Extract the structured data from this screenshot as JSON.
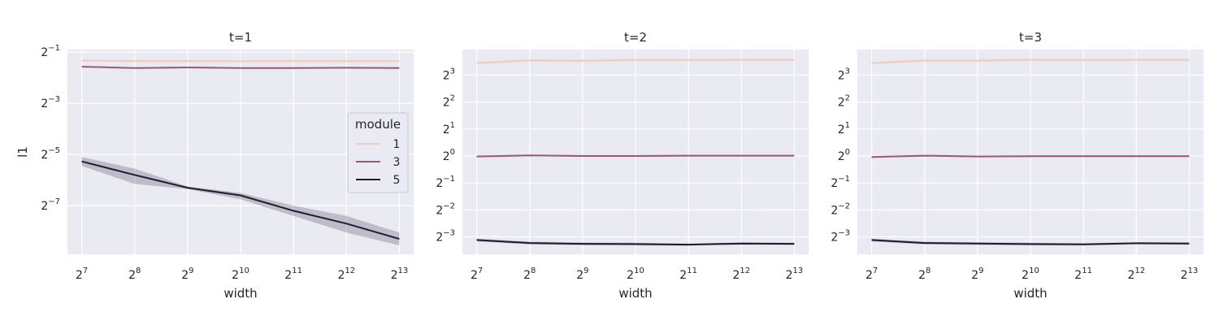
{
  "chart_data": [
    {
      "type": "line",
      "title": "t=1",
      "xlabel": "width",
      "ylabel": "l1",
      "x_scale": "log2",
      "y_scale": "log2",
      "x": [
        7,
        8,
        9,
        10,
        11,
        12,
        13
      ],
      "x_tick_labels": [
        "2^7",
        "2^8",
        "2^9",
        "2^10",
        "2^11",
        "2^12",
        "2^13"
      ],
      "ylim": [
        -8.9,
        -0.9
      ],
      "y_ticks": [
        -7,
        -5,
        -3,
        -1
      ],
      "y_tick_labels": [
        "2^−7",
        "2^−5",
        "2^−3",
        "2^−1"
      ],
      "grid": true,
      "legend": {
        "title": "module",
        "placement": "right",
        "entries": [
          "1",
          "3",
          "5"
        ]
      },
      "series": [
        {
          "name": "1",
          "color": "#f1cbc0",
          "values": [
            -1.33,
            -1.35,
            -1.35,
            -1.35,
            -1.35,
            -1.35,
            -1.35
          ],
          "ci_low": [
            -1.38,
            -1.4,
            -1.4,
            -1.4,
            -1.4,
            -1.4,
            -1.4
          ],
          "ci_high": [
            -1.29,
            -1.31,
            -1.31,
            -1.31,
            -1.31,
            -1.31,
            -1.31
          ]
        },
        {
          "name": "3",
          "color": "#9c567a",
          "values": [
            -1.57,
            -1.62,
            -1.6,
            -1.62,
            -1.62,
            -1.61,
            -1.62
          ],
          "ci_low": [
            -1.6,
            -1.65,
            -1.63,
            -1.65,
            -1.65,
            -1.64,
            -1.65
          ],
          "ci_high": [
            -1.54,
            -1.59,
            -1.57,
            -1.59,
            -1.59,
            -1.58,
            -1.59
          ]
        },
        {
          "name": "5",
          "color": "#221a30",
          "values": [
            -5.27,
            -5.8,
            -6.3,
            -6.6,
            -7.2,
            -7.7,
            -8.3
          ],
          "ci_low": [
            -5.45,
            -6.15,
            -6.35,
            -6.75,
            -7.4,
            -8.05,
            -8.55
          ],
          "ci_high": [
            -5.1,
            -5.55,
            -6.25,
            -6.5,
            -7.0,
            -7.4,
            -8.05
          ]
        }
      ]
    },
    {
      "type": "line",
      "title": "t=2",
      "xlabel": "width",
      "ylabel": "",
      "x_scale": "log2",
      "y_scale": "log2",
      "x": [
        7,
        8,
        9,
        10,
        11,
        12,
        13
      ],
      "x_tick_labels": [
        "2^7",
        "2^8",
        "2^9",
        "2^10",
        "2^11",
        "2^12",
        "2^13"
      ],
      "ylim": [
        -3.65,
        3.95
      ],
      "y_ticks": [
        -3,
        -2,
        -1,
        0,
        1,
        2,
        3
      ],
      "y_tick_labels": [
        "2^−3",
        "2^−2",
        "2^−1",
        "2^0",
        "2^1",
        "2^2",
        "2^3"
      ],
      "grid": true,
      "series": [
        {
          "name": "1",
          "color": "#f1cbc0",
          "values": [
            3.45,
            3.55,
            3.53,
            3.57,
            3.56,
            3.57,
            3.57
          ],
          "ci_low": [
            3.4,
            3.5,
            3.48,
            3.52,
            3.51,
            3.52,
            3.52
          ],
          "ci_high": [
            3.5,
            3.6,
            3.58,
            3.62,
            3.61,
            3.62,
            3.62
          ]
        },
        {
          "name": "3",
          "color": "#9c567a",
          "values": [
            -0.02,
            0.02,
            0.0,
            0.0,
            0.01,
            0.01,
            0.01
          ],
          "ci_low": [
            -0.05,
            -0.01,
            -0.03,
            -0.03,
            -0.02,
            -0.02,
            -0.02
          ],
          "ci_high": [
            0.01,
            0.05,
            0.03,
            0.03,
            0.04,
            0.04,
            0.04
          ]
        },
        {
          "name": "5",
          "color": "#221a30",
          "values": [
            -3.12,
            -3.23,
            -3.26,
            -3.27,
            -3.29,
            -3.25,
            -3.26
          ],
          "ci_low": [
            -3.17,
            -3.28,
            -3.31,
            -3.32,
            -3.33,
            -3.29,
            -3.3
          ],
          "ci_high": [
            -3.07,
            -3.18,
            -3.21,
            -3.22,
            -3.25,
            -3.21,
            -3.22
          ]
        }
      ]
    },
    {
      "type": "line",
      "title": "t=3",
      "xlabel": "width",
      "ylabel": "",
      "x_scale": "log2",
      "y_scale": "log2",
      "x": [
        7,
        8,
        9,
        10,
        11,
        12,
        13
      ],
      "x_tick_labels": [
        "2^7",
        "2^8",
        "2^9",
        "2^10",
        "2^11",
        "2^12",
        "2^13"
      ],
      "ylim": [
        -3.65,
        3.95
      ],
      "y_ticks": [
        -3,
        -2,
        -1,
        0,
        1,
        2,
        3
      ],
      "y_tick_labels": [
        "2^−3",
        "2^−2",
        "2^−1",
        "2^0",
        "2^1",
        "2^2",
        "2^3"
      ],
      "grid": true,
      "series": [
        {
          "name": "1",
          "color": "#f1cbc0",
          "values": [
            3.45,
            3.54,
            3.54,
            3.57,
            3.56,
            3.57,
            3.57
          ],
          "ci_low": [
            3.4,
            3.49,
            3.49,
            3.52,
            3.51,
            3.52,
            3.52
          ],
          "ci_high": [
            3.5,
            3.59,
            3.59,
            3.62,
            3.61,
            3.62,
            3.62
          ]
        },
        {
          "name": "3",
          "color": "#9c567a",
          "values": [
            -0.04,
            0.01,
            -0.02,
            -0.01,
            -0.01,
            -0.01,
            -0.01
          ],
          "ci_low": [
            -0.07,
            -0.02,
            -0.05,
            -0.04,
            -0.04,
            -0.04,
            -0.04
          ],
          "ci_high": [
            -0.01,
            0.04,
            0.01,
            0.02,
            0.02,
            0.02,
            0.02
          ]
        },
        {
          "name": "5",
          "color": "#221a30",
          "values": [
            -3.12,
            -3.23,
            -3.25,
            -3.27,
            -3.28,
            -3.24,
            -3.25
          ],
          "ci_low": [
            -3.17,
            -3.28,
            -3.3,
            -3.32,
            -3.32,
            -3.28,
            -3.29
          ],
          "ci_high": [
            -3.07,
            -3.18,
            -3.2,
            -3.22,
            -3.24,
            -3.2,
            -3.21
          ]
        }
      ]
    }
  ]
}
